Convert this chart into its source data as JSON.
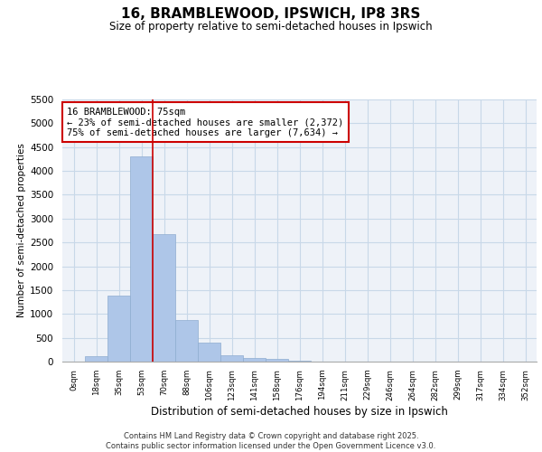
{
  "title_line1": "16, BRAMBLEWOOD, IPSWICH, IP8 3RS",
  "title_line2": "Size of property relative to semi-detached houses in Ipswich",
  "xlabel": "Distribution of semi-detached houses by size in Ipswich",
  "ylabel": "Number of semi-detached properties",
  "bin_labels": [
    "0sqm",
    "18sqm",
    "35sqm",
    "53sqm",
    "70sqm",
    "88sqm",
    "106sqm",
    "123sqm",
    "141sqm",
    "158sqm",
    "176sqm",
    "194sqm",
    "211sqm",
    "229sqm",
    "246sqm",
    "264sqm",
    "282sqm",
    "299sqm",
    "317sqm",
    "334sqm",
    "352sqm"
  ],
  "bar_values": [
    5,
    120,
    1380,
    4300,
    2680,
    880,
    400,
    130,
    80,
    50,
    20,
    5,
    5,
    3,
    2,
    1,
    1,
    1,
    0,
    0,
    0
  ],
  "bar_color": "#aec6e8",
  "bar_edge_color": "#aec6e8",
  "grid_color": "#c8d8e8",
  "background_color": "#eef2f8",
  "property_bin_index": 4,
  "annotation_text_line1": "16 BRAMBLEWOOD: 75sqm",
  "annotation_text_line2": "← 23% of semi-detached houses are smaller (2,372)",
  "annotation_text_line3": "75% of semi-detached houses are larger (7,634) →",
  "annotation_box_color": "#ffffff",
  "annotation_box_edge_color": "#cc0000",
  "vline_color": "#cc0000",
  "ylim": [
    0,
    5500
  ],
  "yticks": [
    0,
    500,
    1000,
    1500,
    2000,
    2500,
    3000,
    3500,
    4000,
    4500,
    5000,
    5500
  ],
  "footer_line1": "Contains HM Land Registry data © Crown copyright and database right 2025.",
  "footer_line2": "Contains public sector information licensed under the Open Government Licence v3.0."
}
